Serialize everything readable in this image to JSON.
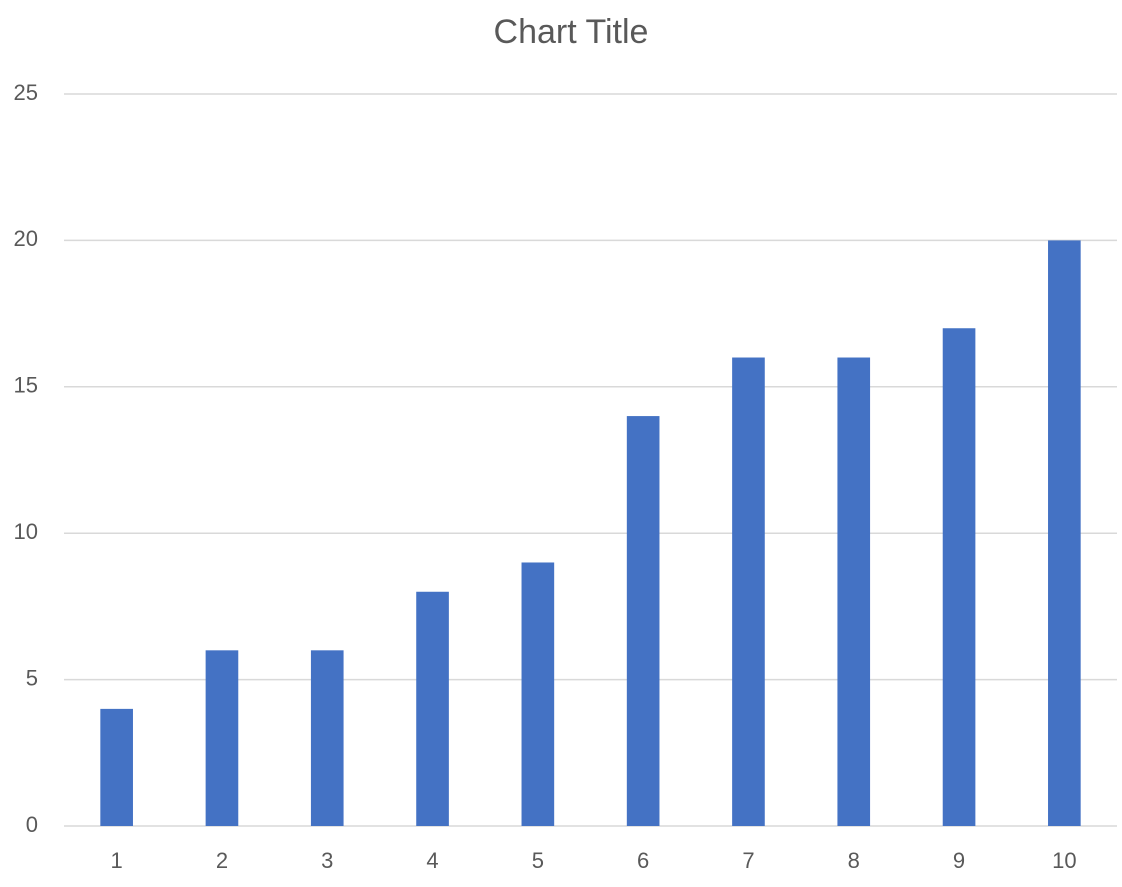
{
  "chart_data": {
    "type": "bar",
    "title": "Chart Title",
    "categories": [
      "1",
      "2",
      "3",
      "4",
      "5",
      "6",
      "7",
      "8",
      "9",
      "10"
    ],
    "values": [
      4,
      6,
      6,
      8,
      9,
      14,
      16,
      16,
      17,
      20
    ],
    "color": "#4472c4",
    "ylim": [
      0,
      25
    ],
    "yticks": [
      0,
      5,
      10,
      15,
      20,
      25
    ],
    "grid": true
  }
}
